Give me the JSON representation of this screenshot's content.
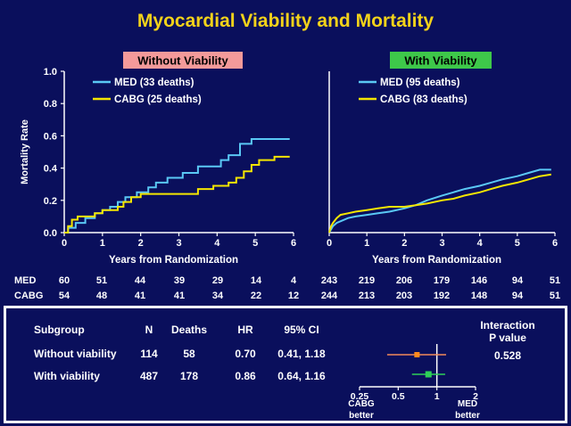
{
  "title": "Myocardial Viability and Mortality",
  "colors": {
    "background": "#0a0f5c",
    "title": "#f2d21a",
    "med": "#5ac8f5",
    "cabg": "#f5e600",
    "without_badge": "#f49a9a",
    "with_badge": "#3ec84a",
    "orange_marker": "#ff8a1e",
    "green_marker": "#2ed058",
    "forest_line": "#f28a5a"
  },
  "chart_data": [
    {
      "type": "line",
      "panel_label": "Without Viability",
      "ylabel": "Mortality Rate",
      "xlabel": "Years from Randomization",
      "ylim": [
        0,
        1.0
      ],
      "xlim": [
        0,
        6
      ],
      "yticks": [
        "0.0",
        "0.2",
        "0.4",
        "0.6",
        "0.8",
        "1.0"
      ],
      "xticks": [
        "0",
        "1",
        "2",
        "3",
        "4",
        "5",
        "6"
      ],
      "series": [
        {
          "name": "MED",
          "legend": "MED  (33 deaths)",
          "x": [
            0,
            0.1,
            0.1,
            0.3,
            0.3,
            0.55,
            0.55,
            0.8,
            0.8,
            1.0,
            1.0,
            1.2,
            1.2,
            1.4,
            1.4,
            1.6,
            1.6,
            1.9,
            1.9,
            2.2,
            2.2,
            2.4,
            2.4,
            2.7,
            2.7,
            3.1,
            3.1,
            3.5,
            3.5,
            4.1,
            4.1,
            4.3,
            4.3,
            4.6,
            4.6,
            4.9,
            4.9,
            5.5,
            5.5,
            5.9
          ],
          "y": [
            0,
            0,
            0.03,
            0.03,
            0.06,
            0.06,
            0.09,
            0.09,
            0.12,
            0.12,
            0.14,
            0.14,
            0.16,
            0.16,
            0.19,
            0.19,
            0.22,
            0.22,
            0.25,
            0.25,
            0.28,
            0.28,
            0.31,
            0.31,
            0.34,
            0.34,
            0.37,
            0.37,
            0.41,
            0.41,
            0.45,
            0.45,
            0.48,
            0.48,
            0.55,
            0.55,
            0.58,
            0.58,
            0.58,
            0.58
          ]
        },
        {
          "name": "CABG",
          "legend": "CABG (25 deaths)",
          "x": [
            0,
            0.1,
            0.1,
            0.2,
            0.2,
            0.35,
            0.35,
            0.8,
            0.8,
            1.0,
            1.0,
            1.4,
            1.4,
            1.55,
            1.55,
            1.75,
            1.75,
            2.0,
            2.0,
            3.5,
            3.5,
            3.9,
            3.9,
            4.3,
            4.3,
            4.5,
            4.5,
            4.7,
            4.7,
            4.9,
            4.9,
            5.1,
            5.1,
            5.5,
            5.5,
            5.9
          ],
          "y": [
            0,
            0,
            0.04,
            0.04,
            0.08,
            0.08,
            0.1,
            0.1,
            0.12,
            0.12,
            0.14,
            0.14,
            0.16,
            0.16,
            0.19,
            0.19,
            0.22,
            0.22,
            0.24,
            0.24,
            0.27,
            0.27,
            0.29,
            0.29,
            0.31,
            0.31,
            0.34,
            0.34,
            0.38,
            0.38,
            0.42,
            0.42,
            0.45,
            0.45,
            0.47,
            0.47
          ]
        }
      ]
    },
    {
      "type": "line",
      "panel_label": "With Viability",
      "xlabel": "Years from Randomization",
      "ylim": [
        0,
        1.0
      ],
      "xlim": [
        0,
        6
      ],
      "xticks": [
        "0",
        "1",
        "2",
        "3",
        "4",
        "5",
        "6"
      ],
      "series": [
        {
          "name": "MED",
          "legend": "MED  (95 deaths)",
          "x": [
            0,
            0.05,
            0.1,
            0.2,
            0.3,
            0.5,
            0.7,
            1.0,
            1.3,
            1.6,
            2.0,
            2.3,
            2.6,
            3.0,
            3.3,
            3.6,
            4.0,
            4.3,
            4.6,
            5.0,
            5.3,
            5.6,
            5.9
          ],
          "y": [
            0,
            0.02,
            0.04,
            0.06,
            0.07,
            0.09,
            0.1,
            0.11,
            0.12,
            0.13,
            0.15,
            0.17,
            0.2,
            0.23,
            0.25,
            0.27,
            0.29,
            0.31,
            0.33,
            0.35,
            0.37,
            0.39,
            0.39
          ]
        },
        {
          "name": "CABG",
          "legend": "CABG (83 deaths)",
          "x": [
            0,
            0.05,
            0.1,
            0.2,
            0.3,
            0.5,
            0.7,
            1.0,
            1.3,
            1.6,
            2.0,
            2.3,
            2.6,
            3.0,
            3.3,
            3.6,
            4.0,
            4.3,
            4.6,
            5.0,
            5.3,
            5.6,
            5.9
          ],
          "y": [
            0,
            0.04,
            0.06,
            0.09,
            0.11,
            0.12,
            0.13,
            0.14,
            0.15,
            0.16,
            0.16,
            0.17,
            0.18,
            0.2,
            0.21,
            0.23,
            0.25,
            0.27,
            0.29,
            0.31,
            0.33,
            0.35,
            0.36
          ]
        }
      ]
    },
    {
      "type": "table",
      "name": "numbers_at_risk",
      "rows": [
        {
          "label": "MED",
          "without": [
            "60",
            "51",
            "44",
            "39",
            "29",
            "14",
            "4"
          ],
          "with": [
            "243",
            "219",
            "206",
            "179",
            "146",
            "94",
            "51"
          ]
        },
        {
          "label": "CABG",
          "without": [
            "54",
            "48",
            "41",
            "41",
            "34",
            "22",
            "12"
          ],
          "with": [
            "244",
            "213",
            "203",
            "192",
            "148",
            "94",
            "51"
          ]
        }
      ]
    },
    {
      "type": "table",
      "name": "subgroup_forest",
      "headers": [
        "Subgroup",
        "N",
        "Deaths",
        "HR",
        "95% CI"
      ],
      "rows": [
        {
          "subgroup": "Without viability",
          "n": "114",
          "deaths": "58",
          "hr": "0.70",
          "ci": "0.41, 1.18",
          "hr_value": 0.7,
          "ci_low": 0.41,
          "ci_high": 1.18
        },
        {
          "subgroup": "With viability",
          "n": "487",
          "deaths": "178",
          "hr": "0.86",
          "ci": "0.64, 1.16",
          "hr_value": 0.86,
          "ci_low": 0.64,
          "ci_high": 1.16
        }
      ],
      "interaction_label_1": "Interaction",
      "interaction_label_2": "P value",
      "interaction_p": "0.528",
      "axis_ticks": [
        "0.25",
        "0.5",
        "1",
        "2"
      ],
      "axis_tick_values": [
        0.25,
        0.5,
        1,
        2
      ],
      "left_label_1": "CABG",
      "left_label_2": "better",
      "right_label_1": "MED",
      "right_label_2": "better"
    }
  ]
}
